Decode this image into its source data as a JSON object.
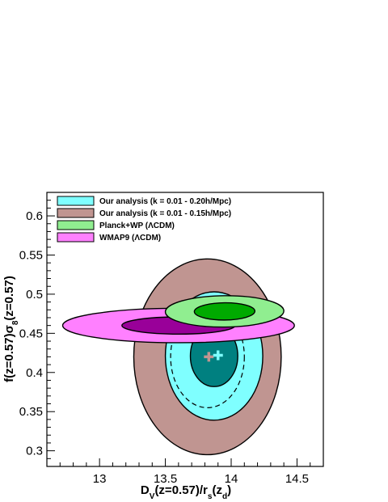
{
  "chart_data": {
    "type": "contour",
    "xlabel": "D_V(z=0.57)/r_s(z_d)",
    "ylabel": "f(z=0.57)σ8(z=0.57)",
    "xlim": [
      12.6,
      14.7
    ],
    "ylim": [
      0.28,
      0.63
    ],
    "x_ticks": [
      13,
      13.5,
      14,
      14.5
    ],
    "x_tick_labels": [
      "13",
      "13.5",
      "14",
      "14.5"
    ],
    "y_ticks": [
      0.3,
      0.35,
      0.4,
      0.45,
      0.5,
      0.55,
      0.6
    ],
    "y_tick_labels": [
      "0.3",
      "0.35",
      "0.4",
      "0.45",
      "0.5",
      "0.55",
      "0.6"
    ],
    "legend_position": "top-left",
    "series": [
      {
        "name": "Our analysis (k = 0.01 - 0.20h/Mpc)",
        "color_1sigma": "#008080",
        "color_2sigma": "#7fffff",
        "center": [
          13.87,
          0.421
        ],
        "sigma1_semi": [
          0.18,
          0.039
        ],
        "sigma2_semi": [
          0.37,
          0.082
        ],
        "tilt_deg": 0
      },
      {
        "name": "Our analysis (k = 0.01 - 0.15h/Mpc)",
        "color_1sigma": "#4a6a6a",
        "color_2sigma": "#c09591",
        "center": [
          13.82,
          0.42
        ],
        "sigma1_semi": [
          0.28,
          0.065
        ],
        "sigma2_semi": [
          0.56,
          0.125
        ],
        "tilt_deg": 0
      },
      {
        "name": "Planck+WP (ΛCDM)",
        "color_1sigma": "#00aa00",
        "color_2sigma": "#90ee90",
        "center": [
          13.95,
          0.478
        ],
        "sigma1_semi": [
          0.23,
          0.011
        ],
        "sigma2_semi": [
          0.45,
          0.02
        ],
        "tilt_deg": -0.5
      },
      {
        "name": "WMAP9 (ΛCDM)",
        "color_1sigma": "#990099",
        "color_2sigma": "#ff80ff",
        "center": [
          13.6,
          0.46
        ],
        "sigma1_semi": [
          0.43,
          0.011
        ],
        "sigma2_semi": [
          0.88,
          0.022
        ],
        "tilt_deg": 0
      }
    ],
    "markers": [
      {
        "x": 13.83,
        "y": 0.42,
        "color": "#c09591"
      },
      {
        "x": 13.9,
        "y": 0.422,
        "color": "#7fffff"
      }
    ]
  }
}
